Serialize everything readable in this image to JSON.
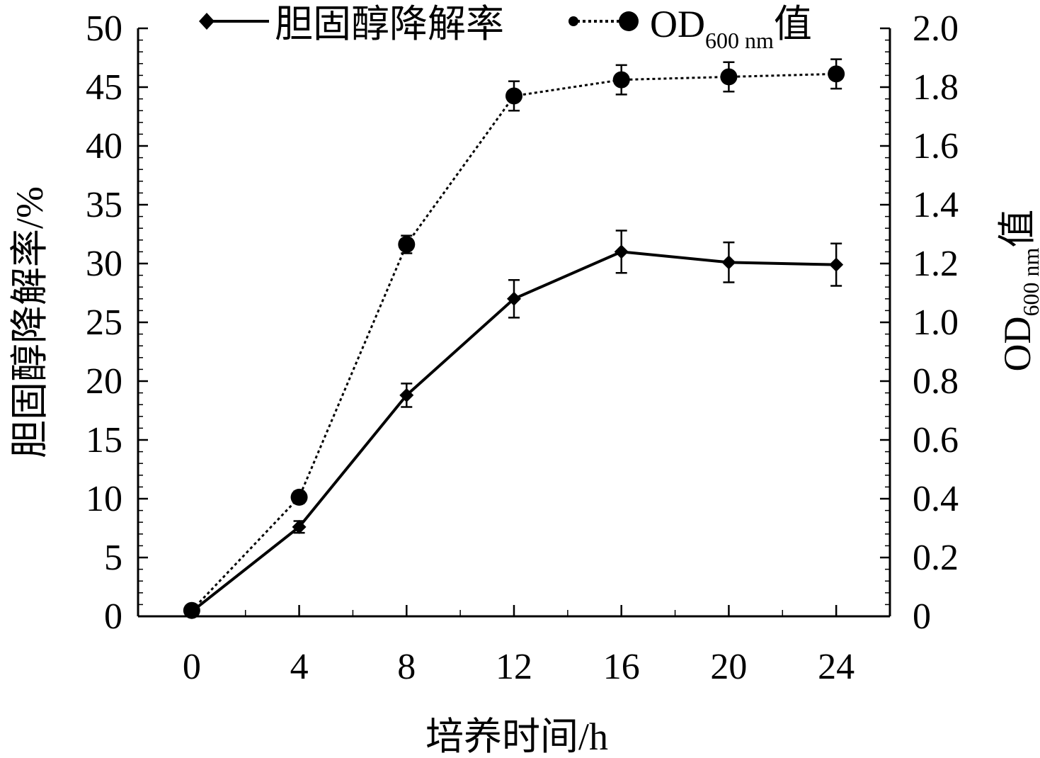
{
  "chart_data": {
    "type": "line",
    "x": [
      0,
      4,
      8,
      12,
      16,
      20,
      24
    ],
    "xlabel": "培养时间/h",
    "xlim": [
      -2,
      26
    ],
    "x_ticks": [
      "0",
      "4",
      "8",
      "12",
      "16",
      "20",
      "24"
    ],
    "y_left": {
      "label": "胆固醇降解率/%",
      "lim": [
        0,
        50
      ],
      "ticks": [
        "0",
        "5",
        "10",
        "15",
        "20",
        "25",
        "30",
        "35",
        "40",
        "45",
        "50"
      ]
    },
    "y_right": {
      "label_main": "OD",
      "label_sub": "600 nm",
      "label_tail": "值",
      "lim": [
        0,
        2.0
      ],
      "ticks": [
        "0",
        "0.2",
        "0.4",
        "0.6",
        "0.8",
        "1.0",
        "1.2",
        "1.4",
        "1.6",
        "1.8",
        "2.0"
      ]
    },
    "series": [
      {
        "name": "胆固醇降解率",
        "axis": "left",
        "style": "solid",
        "marker": "diamond",
        "color": "#000000",
        "values": [
          0.4,
          7.6,
          18.8,
          27.0,
          31.0,
          30.1,
          29.9
        ],
        "errors": [
          0,
          0.5,
          1.0,
          1.6,
          1.8,
          1.7,
          1.8
        ]
      },
      {
        "name_main": "OD",
        "name_sub": "600 nm",
        "name_tail": "值",
        "axis": "right",
        "style": "dotted",
        "marker": "circle",
        "color": "#000000",
        "values": [
          0.02,
          0.405,
          1.265,
          1.77,
          1.825,
          1.835,
          1.845
        ],
        "errors": [
          0,
          0.02,
          0.03,
          0.05,
          0.05,
          0.05,
          0.05
        ]
      }
    ],
    "legend": "top",
    "grid": false
  }
}
